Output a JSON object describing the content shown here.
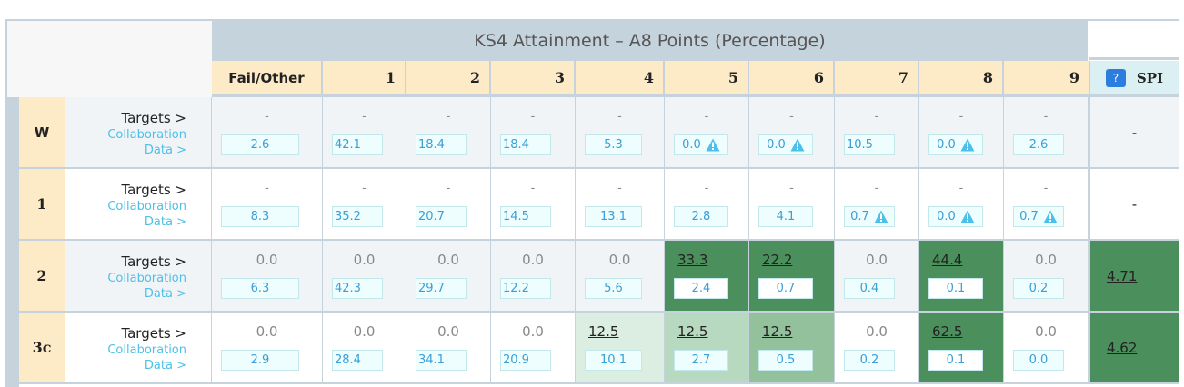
{
  "title": "KS4 Attainment – A8 Points (Percentage)",
  "columns": [
    "Fail/Other",
    "1",
    "2",
    "3",
    "4",
    "5",
    "6",
    "7",
    "8",
    "9"
  ],
  "spi_header": {
    "help_icon": "question-icon",
    "help_label": "?",
    "label": "SPI"
  },
  "row_links": {
    "targets": "Targets >",
    "collab_line1": "Collaboration",
    "collab_line2": "Data >"
  },
  "colors": {
    "header_bg": "#fdebc8",
    "title_bg": "#c5d3dc",
    "spi_header_bg": "#dbf0f2",
    "green_dark": "#4a8f5c",
    "green_mid": "#92c19c",
    "green_light": "#b6d9c0",
    "green_pale": "#dcede1",
    "collab_text": "#3a9fd6",
    "help_btn": "#2b7de0"
  },
  "rows": [
    {
      "label": "W",
      "bg": "#f1f4f7",
      "targets": [
        "-",
        "-",
        "-",
        "-",
        "-",
        "-",
        "-",
        "-",
        "-",
        "-"
      ],
      "collab": [
        "2.6",
        "42.1",
        "18.4",
        "18.4",
        "5.3",
        "0.0",
        "0.0",
        "10.5",
        "0.0",
        "2.6"
      ],
      "warn": [
        false,
        false,
        false,
        false,
        false,
        true,
        true,
        false,
        true,
        false
      ],
      "highlight": [
        "",
        "",
        "",
        "",
        "",
        "",
        "",
        "",
        "",
        ""
      ],
      "spi": "-",
      "spi_highlight": ""
    },
    {
      "label": "1",
      "bg": "#ffffff",
      "targets": [
        "-",
        "-",
        "-",
        "-",
        "-",
        "-",
        "-",
        "-",
        "-",
        "-"
      ],
      "collab": [
        "8.3",
        "35.2",
        "20.7",
        "14.5",
        "13.1",
        "2.8",
        "4.1",
        "0.7",
        "0.0",
        "0.7"
      ],
      "warn": [
        false,
        false,
        false,
        false,
        false,
        false,
        false,
        true,
        true,
        true
      ],
      "highlight": [
        "",
        "",
        "",
        "",
        "",
        "",
        "",
        "",
        "",
        ""
      ],
      "spi": "-",
      "spi_highlight": ""
    },
    {
      "label": "2",
      "bg": "#f1f4f7",
      "targets": [
        "0.0",
        "0.0",
        "0.0",
        "0.0",
        "0.0",
        "33.3",
        "22.2",
        "0.0",
        "44.4",
        "0.0"
      ],
      "collab": [
        "6.3",
        "42.3",
        "29.7",
        "12.2",
        "5.6",
        "2.4",
        "0.7",
        "0.4",
        "0.1",
        "0.2"
      ],
      "warn": [
        false,
        false,
        false,
        false,
        false,
        false,
        false,
        false,
        false,
        false
      ],
      "highlight": [
        "",
        "",
        "",
        "",
        "",
        "dark",
        "dark",
        "",
        "dark",
        ""
      ],
      "spi": "4.71",
      "spi_highlight": "dark"
    },
    {
      "label": "3c",
      "bg": "#ffffff",
      "targets": [
        "0.0",
        "0.0",
        "0.0",
        "0.0",
        "12.5",
        "12.5",
        "12.5",
        "0.0",
        "62.5",
        "0.0"
      ],
      "collab": [
        "2.9",
        "28.4",
        "34.1",
        "20.9",
        "10.1",
        "2.7",
        "0.5",
        "0.2",
        "0.1",
        "0.0"
      ],
      "warn": [
        false,
        false,
        false,
        false,
        false,
        false,
        false,
        false,
        false,
        false
      ],
      "highlight": [
        "",
        "",
        "",
        "",
        "pale",
        "light",
        "mid",
        "",
        "dark",
        ""
      ],
      "spi": "4.62",
      "spi_highlight": "dark"
    }
  ]
}
